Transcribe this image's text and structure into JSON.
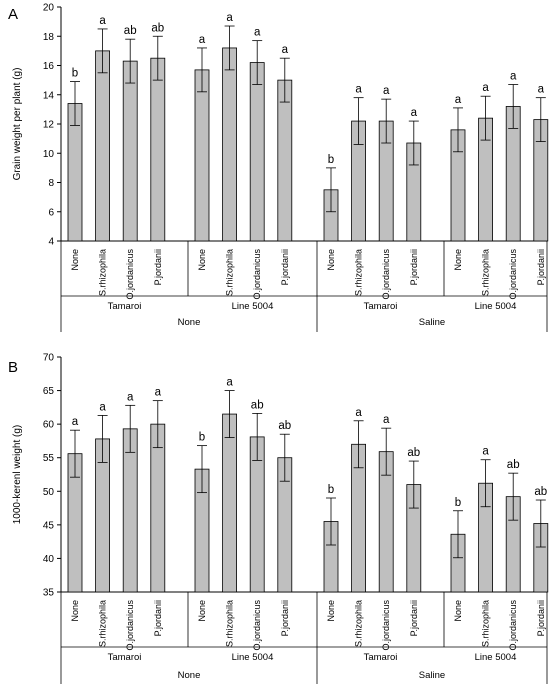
{
  "chart_data": [
    {
      "type": "bar",
      "panel_label": "A",
      "ylabel": "Grain weight per plant (g)",
      "ylim": [
        4,
        20
      ],
      "yticks": [
        "4",
        "6",
        "8",
        "10",
        "12",
        "14",
        "16",
        "18",
        "20"
      ],
      "grid": false,
      "legend": "none",
      "bar_color": "#bfbfbf",
      "categories": [
        "None",
        "S.rhizophila",
        "O.jordanicus",
        "P.jordanii",
        "None",
        "S.rhizophila",
        "O.jordanicus",
        "P.jordanii",
        "None",
        "S.rhizophila",
        "O.jordanicus",
        "P.jordanii",
        "None",
        "S.rhizophila",
        "O.jordanicus",
        "P.jordanii"
      ],
      "values": [
        13.4,
        17.0,
        16.3,
        16.5,
        15.7,
        17.2,
        16.2,
        15.0,
        7.5,
        12.2,
        12.2,
        10.7,
        11.6,
        12.4,
        13.2,
        12.3
      ],
      "errors": [
        1.5,
        1.5,
        1.5,
        1.5,
        1.5,
        1.5,
        1.5,
        1.5,
        1.5,
        1.6,
        1.5,
        1.5,
        1.5,
        1.5,
        1.5,
        1.5
      ],
      "significance": [
        "b",
        "a",
        "ab",
        "ab",
        "a",
        "a",
        "a",
        "a",
        "b",
        "a",
        "a",
        "a",
        "a",
        "a",
        "a",
        "a"
      ],
      "cultivars": [
        "Tamaroi",
        "Line 5004",
        "Tamaroi",
        "Line 5004"
      ],
      "conditions": [
        "None",
        "Saline"
      ]
    },
    {
      "type": "bar",
      "panel_label": "B",
      "ylabel": "1000-kerenl weight (g)",
      "ylim": [
        35,
        70
      ],
      "yticks": [
        "35",
        "40",
        "45",
        "50",
        "55",
        "60",
        "65",
        "70"
      ],
      "grid": false,
      "legend": "none",
      "bar_color": "#bfbfbf",
      "categories": [
        "None",
        "S.rhizophila",
        "O.jordanicus",
        "P.jordanii",
        "None",
        "S.rhizophila",
        "O.jordanicus",
        "P.jordanii",
        "None",
        "S.rhizophila",
        "O.jordanicus",
        "P.jordanii",
        "None",
        "S.rhizophila",
        "O.jordanicus",
        "P.jordanii"
      ],
      "values": [
        55.6,
        57.8,
        59.3,
        60.0,
        53.3,
        61.5,
        58.1,
        55.0,
        45.5,
        57.0,
        55.9,
        51.0,
        43.6,
        51.2,
        49.2,
        45.2
      ],
      "errors": [
        3.5,
        3.5,
        3.5,
        3.5,
        3.5,
        3.5,
        3.5,
        3.5,
        3.5,
        3.5,
        3.5,
        3.5,
        3.5,
        3.5,
        3.5,
        3.5
      ],
      "significance": [
        "a",
        "a",
        "a",
        "a",
        "b",
        "a",
        "ab",
        "ab",
        "b",
        "a",
        "a",
        "ab",
        "b",
        "a",
        "ab",
        "ab"
      ],
      "cultivars": [
        "Tamaroi",
        "Line 5004",
        "Tamaroi",
        "Line 5004"
      ],
      "conditions": [
        "None",
        "Saline"
      ]
    }
  ]
}
